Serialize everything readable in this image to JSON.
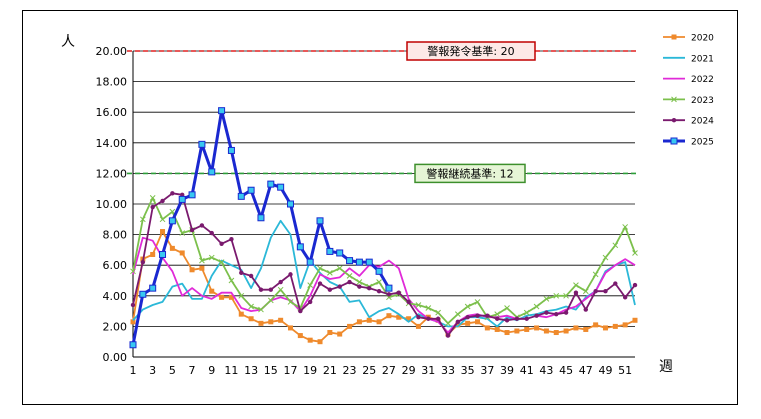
{
  "chart_data": {
    "type": "line",
    "ylabel": "人",
    "xlabel": "週",
    "ylim": [
      0,
      20
    ],
    "y_ticks": [
      "0.00",
      "2.00",
      "4.00",
      "6.00",
      "8.00",
      "10.00",
      "12.00",
      "14.00",
      "16.00",
      "18.00",
      "20.00"
    ],
    "x_ticks": [
      "1",
      "3",
      "5",
      "7",
      "9",
      "11",
      "13",
      "15",
      "17",
      "19",
      "21",
      "23",
      "25",
      "27",
      "29",
      "31",
      "33",
      "35",
      "37",
      "39",
      "41",
      "43",
      "45",
      "47",
      "49",
      "51"
    ],
    "grid": "horizontal",
    "legend_position": "right",
    "thresholds": [
      {
        "label": "警報発令基準: 20",
        "value": 20,
        "color": "#e02020",
        "box_fill": "#fde9e7",
        "box_border": "#c00000"
      },
      {
        "label": "警報継続基準: 12",
        "value": 12,
        "color": "#2e9e3a",
        "box_fill": "#e6f5d6",
        "box_border": "#3d8f2c"
      }
    ],
    "series": [
      {
        "name": "2020",
        "color": "#ef8a2c",
        "marker": "square",
        "bold": false,
        "values": [
          2.3,
          6.4,
          6.7,
          8.2,
          7.1,
          6.8,
          5.7,
          5.8,
          4.3,
          3.9,
          3.9,
          2.8,
          2.5,
          2.2,
          2.3,
          2.4,
          1.9,
          1.4,
          1.1,
          1.0,
          1.6,
          1.5,
          2.0,
          2.3,
          2.4,
          2.3,
          2.7,
          2.6,
          2.5,
          2.0,
          2.6,
          2.4,
          1.5,
          2.1,
          2.2,
          2.3,
          1.9,
          1.8,
          1.6,
          1.7,
          1.8,
          1.9,
          1.7,
          1.6,
          1.7,
          1.9,
          1.8,
          2.1,
          1.9,
          2.0,
          2.1,
          2.4
        ]
      },
      {
        "name": "2021",
        "color": "#2bb8d8",
        "marker": "none",
        "bold": false,
        "values": [
          2.4,
          3.1,
          3.4,
          3.6,
          4.6,
          4.8,
          3.8,
          3.8,
          5.3,
          6.3,
          6.0,
          5.7,
          4.5,
          5.8,
          7.8,
          8.9,
          8.0,
          4.5,
          6.3,
          5.5,
          4.9,
          4.6,
          3.6,
          3.7,
          2.6,
          3.0,
          3.2,
          2.8,
          2.3,
          2.8,
          2.5,
          2.3,
          2.0,
          2.0,
          2.6,
          2.6,
          2.5,
          2.0,
          2.6,
          2.4,
          2.7,
          2.8,
          3.0,
          3.1,
          3.3,
          3.1,
          3.9,
          4.3,
          5.6,
          6.0,
          6.2,
          3.4
        ]
      },
      {
        "name": "2022",
        "color": "#e02ad8",
        "marker": "none",
        "bold": false,
        "values": [
          5.4,
          7.8,
          7.6,
          6.5,
          5.6,
          4.0,
          4.5,
          4.0,
          3.8,
          4.2,
          4.2,
          3.2,
          3.0,
          3.1,
          3.7,
          3.9,
          3.7,
          3.0,
          4.0,
          5.4,
          5.1,
          5.2,
          5.8,
          5.3,
          6.0,
          5.9,
          6.3,
          5.8,
          3.8,
          3.0,
          2.5,
          2.3,
          1.6,
          2.3,
          2.7,
          2.8,
          2.6,
          2.6,
          2.7,
          2.5,
          2.5,
          2.7,
          2.6,
          2.8,
          3.1,
          3.3,
          3.8,
          4.3,
          5.5,
          6.0,
          6.4,
          6.0
        ]
      },
      {
        "name": "2023",
        "color": "#7cc04c",
        "marker": "cross",
        "bold": false,
        "values": [
          5.6,
          9.0,
          10.4,
          9.0,
          9.5,
          8.1,
          8.3,
          6.3,
          6.5,
          6.2,
          5.0,
          4.0,
          3.3,
          3.1,
          3.7,
          4.4,
          3.6,
          3.2,
          4.7,
          5.8,
          5.5,
          5.8,
          5.3,
          4.9,
          4.6,
          4.9,
          3.9,
          4.1,
          3.5,
          3.4,
          3.2,
          2.9,
          2.2,
          2.8,
          3.3,
          3.6,
          2.6,
          2.8,
          3.2,
          2.6,
          2.9,
          3.3,
          3.8,
          4.0,
          4.0,
          4.7,
          4.3,
          5.4,
          6.5,
          7.3,
          8.5,
          6.8
        ]
      },
      {
        "name": "2024",
        "color": "#7a1a6e",
        "marker": "dot",
        "bold": false,
        "values": [
          3.4,
          6.2,
          9.8,
          10.2,
          10.7,
          10.6,
          8.3,
          8.6,
          8.1,
          7.4,
          7.7,
          5.5,
          5.3,
          4.4,
          4.4,
          4.9,
          5.4,
          3.0,
          3.6,
          4.8,
          4.4,
          4.6,
          4.9,
          4.6,
          4.5,
          4.3,
          4.1,
          4.2,
          3.6,
          2.6,
          2.5,
          2.5,
          1.4,
          2.3,
          2.6,
          2.7,
          2.7,
          2.5,
          2.4,
          2.5,
          2.5,
          2.7,
          2.9,
          2.8,
          2.9,
          4.2,
          3.1,
          4.3,
          4.3,
          4.8,
          3.9,
          4.7
        ]
      },
      {
        "name": "2025",
        "color": "#1a28d0",
        "marker": "square",
        "bold": true,
        "values": [
          0.8,
          4.1,
          4.5,
          6.7,
          8.9,
          10.3,
          10.6,
          13.9,
          12.1,
          16.1,
          13.5,
          10.5,
          10.9,
          9.1,
          11.3,
          11.1,
          10.0,
          7.2,
          6.2,
          8.9,
          6.9,
          6.8,
          6.3,
          6.2,
          6.2,
          5.6,
          4.5
        ]
      }
    ]
  }
}
